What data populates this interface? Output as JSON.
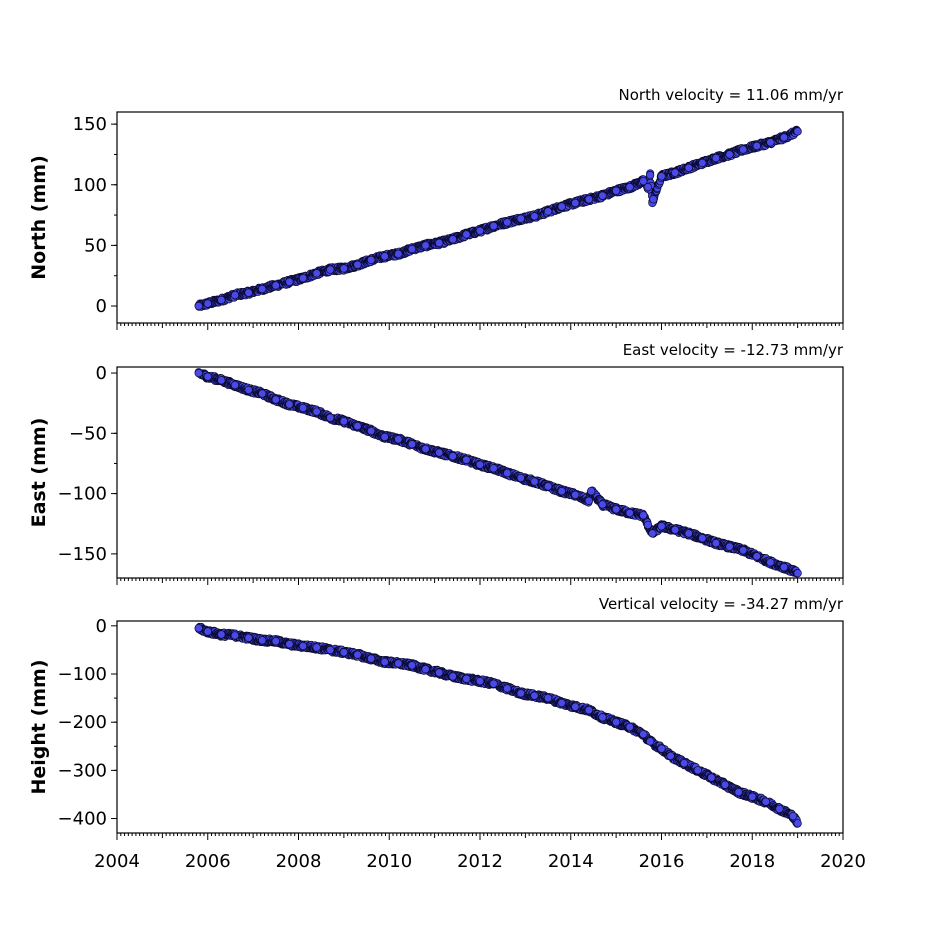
{
  "chart_data": [
    {
      "type": "scatter",
      "title": "North velocity = 11.06 mm/yr",
      "ylabel": "North (mm)",
      "xlim": [
        2004,
        2020
      ],
      "ylim": [
        -14,
        160
      ],
      "yticks": [
        0,
        50,
        100,
        150
      ],
      "ytick_labels": [
        "0",
        "50",
        "100",
        "150"
      ],
      "xtick_labels": [],
      "color": "#4a4ae8",
      "series": [
        {
          "x": [
            2005.8,
            2006.0,
            2006.3,
            2006.6,
            2006.9,
            2007.2,
            2007.5,
            2007.8,
            2008.1,
            2008.4,
            2008.7,
            2009.0,
            2009.3,
            2009.6,
            2009.9,
            2010.2,
            2010.5,
            2010.8,
            2011.1,
            2011.4,
            2011.7,
            2012.0,
            2012.3,
            2012.6,
            2012.9,
            2013.2,
            2013.5,
            2013.8,
            2014.1,
            2014.4,
            2014.7,
            2015.0,
            2015.3,
            2015.6,
            2015.7,
            2015.75,
            2015.8,
            2015.82,
            2016.0,
            2016.3,
            2016.6,
            2016.9,
            2017.2,
            2017.5,
            2017.8,
            2018.1,
            2018.4,
            2018.7,
            2019.0
          ],
          "y": [
            0,
            2,
            5,
            9,
            11,
            14,
            17,
            20,
            23,
            27,
            30,
            31,
            34,
            38,
            41,
            43,
            47,
            50,
            52,
            55,
            59,
            62,
            66,
            69,
            72,
            74,
            78,
            82,
            85,
            88,
            91,
            95,
            98,
            103,
            98,
            108,
            85,
            88,
            107,
            110,
            114,
            118,
            122,
            125,
            129,
            132,
            135,
            139,
            144
          ]
        }
      ]
    },
    {
      "type": "scatter",
      "title": "East velocity = -12.73 mm/yr",
      "ylabel": "East (mm)",
      "xlim": [
        2004,
        2020
      ],
      "ylim": [
        -170,
        5
      ],
      "yticks": [
        0,
        -50,
        -100,
        -150
      ],
      "ytick_labels": [
        "0",
        "−50",
        "−100",
        "−150"
      ],
      "xtick_labels": [],
      "color": "#4a4ae8",
      "series": [
        {
          "x": [
            2005.8,
            2006.0,
            2006.3,
            2006.6,
            2006.9,
            2007.2,
            2007.5,
            2007.8,
            2008.1,
            2008.4,
            2008.7,
            2009.0,
            2009.3,
            2009.6,
            2009.9,
            2010.2,
            2010.5,
            2010.8,
            2011.1,
            2011.4,
            2011.7,
            2012.0,
            2012.3,
            2012.6,
            2012.9,
            2013.2,
            2013.5,
            2013.8,
            2014.1,
            2014.4,
            2014.45,
            2014.7,
            2015.0,
            2015.3,
            2015.6,
            2015.7,
            2015.8,
            2016.0,
            2016.3,
            2016.6,
            2016.9,
            2017.2,
            2017.5,
            2017.8,
            2018.1,
            2018.4,
            2018.7,
            2019.0
          ],
          "y": [
            0,
            -3,
            -6,
            -10,
            -14,
            -17,
            -22,
            -26,
            -29,
            -32,
            -37,
            -40,
            -44,
            -48,
            -53,
            -55,
            -59,
            -63,
            -66,
            -69,
            -72,
            -76,
            -79,
            -83,
            -87,
            -90,
            -94,
            -98,
            -101,
            -106,
            -98,
            -109,
            -113,
            -116,
            -118,
            -126,
            -133,
            -127,
            -130,
            -133,
            -137,
            -141,
            -144,
            -147,
            -152,
            -157,
            -161,
            -166
          ]
        }
      ]
    },
    {
      "type": "scatter",
      "title": "Vertical velocity = -34.27 mm/yr",
      "ylabel": "Height (mm)",
      "xlim": [
        2004,
        2020
      ],
      "ylim": [
        -430,
        10
      ],
      "yticks": [
        0,
        -100,
        -200,
        -300,
        -400
      ],
      "ytick_labels": [
        "0",
        "−100",
        "−200",
        "−300",
        "−400"
      ],
      "xticks": [
        2004,
        2006,
        2008,
        2010,
        2012,
        2014,
        2016,
        2018,
        2020
      ],
      "xtick_labels": [
        "2004",
        "2006",
        "2008",
        "2010",
        "2012",
        "2014",
        "2016",
        "2018",
        "2020"
      ],
      "color": "#4a4ae8",
      "series": [
        {
          "x": [
            2005.8,
            2006.0,
            2006.3,
            2006.6,
            2006.9,
            2007.2,
            2007.5,
            2007.8,
            2008.1,
            2008.4,
            2008.7,
            2009.0,
            2009.3,
            2009.6,
            2009.9,
            2010.2,
            2010.5,
            2010.8,
            2011.1,
            2011.4,
            2011.7,
            2012.0,
            2012.3,
            2012.6,
            2012.9,
            2013.2,
            2013.5,
            2013.8,
            2014.1,
            2014.4,
            2014.7,
            2015.0,
            2015.3,
            2015.6,
            2015.75,
            2016.0,
            2016.2,
            2016.5,
            2016.8,
            2017.1,
            2017.4,
            2017.7,
            2018.0,
            2018.3,
            2018.6,
            2018.9,
            2019.0
          ],
          "y": [
            -5,
            -12,
            -18,
            -20,
            -25,
            -30,
            -32,
            -38,
            -42,
            -45,
            -50,
            -55,
            -60,
            -68,
            -75,
            -78,
            -82,
            -90,
            -97,
            -105,
            -110,
            -115,
            -120,
            -130,
            -140,
            -145,
            -150,
            -160,
            -168,
            -175,
            -190,
            -200,
            -210,
            -225,
            -240,
            -255,
            -270,
            -285,
            -300,
            -315,
            -330,
            -345,
            -355,
            -365,
            -380,
            -395,
            -410
          ]
        }
      ]
    }
  ]
}
